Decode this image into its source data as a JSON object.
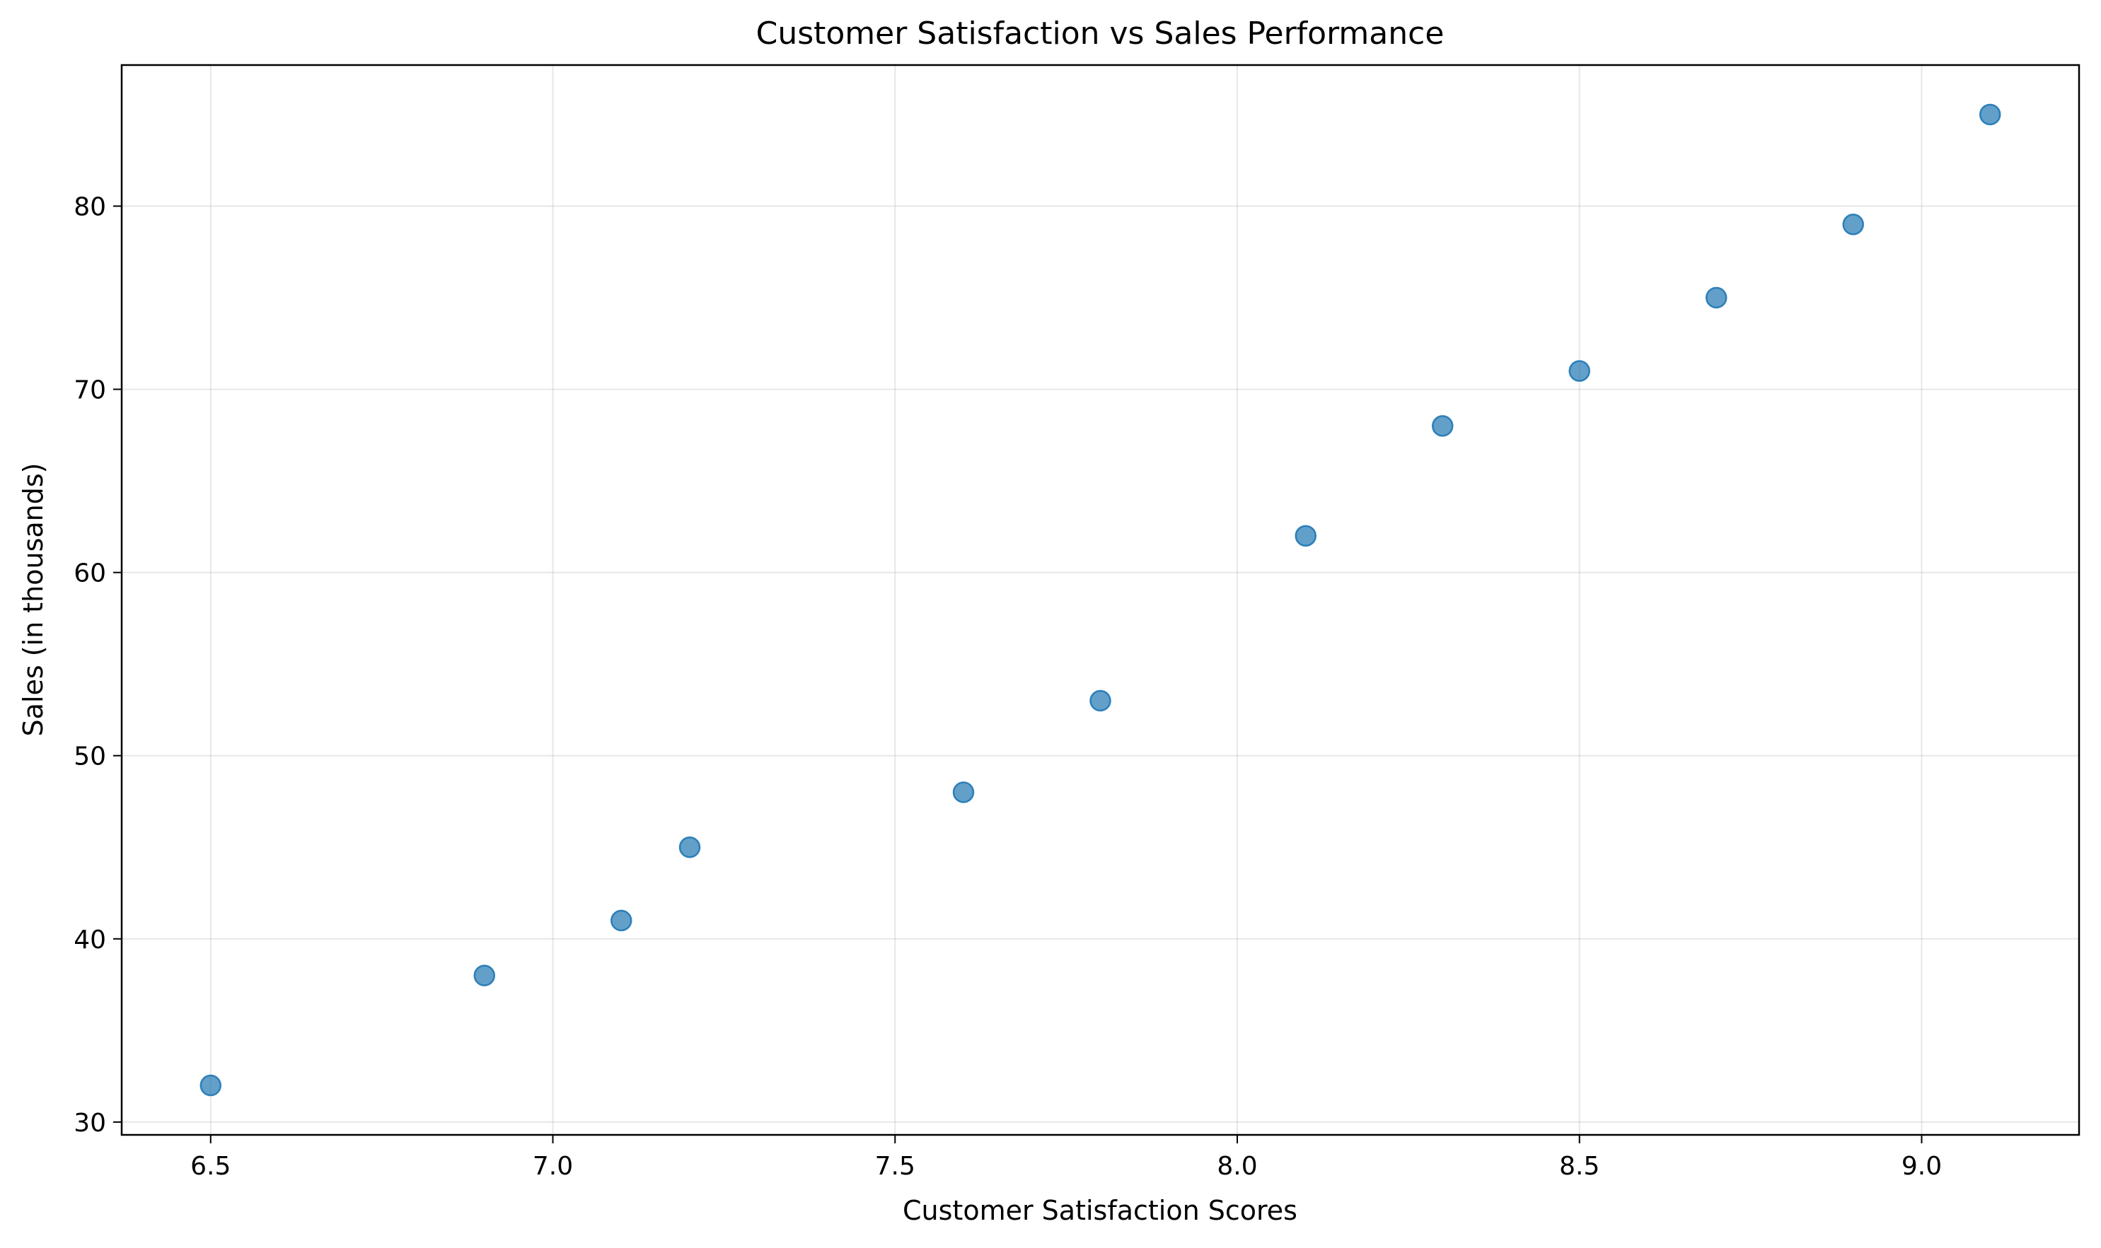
{
  "chart_data": {
    "type": "scatter",
    "title": "Customer Satisfaction vs Sales Performance",
    "xlabel": "Customer Satisfaction Scores",
    "ylabel": "Sales (in thousands)",
    "xlim": [
      6.37,
      9.23
    ],
    "ylim": [
      29.3,
      87.7
    ],
    "xticks": [
      6.5,
      7.0,
      7.5,
      8.0,
      8.5,
      9.0
    ],
    "xtick_labels": [
      "6.5",
      "7.0",
      "7.5",
      "8.0",
      "8.5",
      "9.0"
    ],
    "yticks": [
      30,
      40,
      50,
      60,
      70,
      80
    ],
    "ytick_labels": [
      "30",
      "40",
      "50",
      "60",
      "70",
      "80"
    ],
    "grid": true,
    "legend": "none",
    "series": [
      {
        "color": "#1f77b4",
        "x": [
          6.5,
          6.9,
          7.1,
          7.2,
          7.6,
          7.8,
          8.1,
          8.3,
          8.5,
          8.7,
          8.9,
          9.1
        ],
        "y": [
          32,
          38,
          41,
          45,
          48,
          53,
          62,
          68,
          71,
          75,
          79,
          85
        ]
      }
    ]
  }
}
